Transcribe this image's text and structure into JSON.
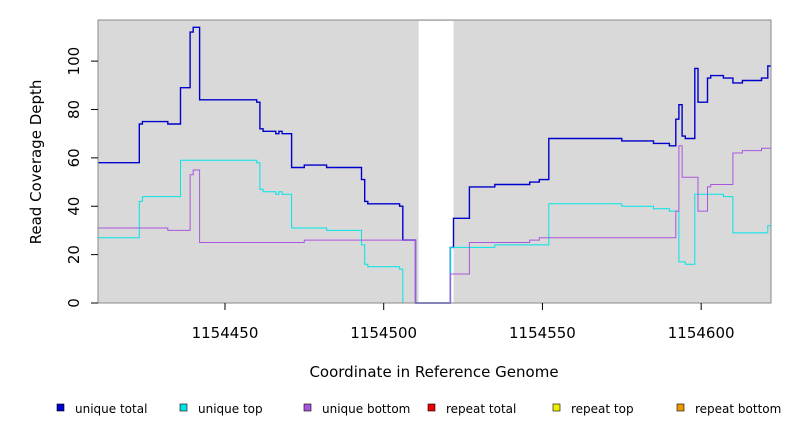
{
  "chart_data": {
    "type": "line",
    "title": "",
    "xlabel": "Coordinate in Reference Genome",
    "ylabel": "Read Coverage Depth",
    "xlim": [
      1154410,
      1154622
    ],
    "ylim": [
      0,
      117
    ],
    "x_ticks": [
      1154450,
      1154500,
      1154550,
      1154600
    ],
    "x_tick_labels": [
      "1154450",
      "1154500",
      "1154550",
      "1154600"
    ],
    "y_ticks": [
      0,
      20,
      40,
      60,
      80,
      100
    ],
    "y_tick_labels": [
      "0",
      "20",
      "40",
      "60",
      "80",
      "100"
    ],
    "grid": false,
    "background": "#d9d9d9",
    "gap": [
      1154511,
      1154522
    ],
    "legend_position": "bottom",
    "series": [
      {
        "name": "unique total",
        "color": "#0000cc",
        "points": [
          [
            1154410,
            58
          ],
          [
            1154423,
            58
          ],
          [
            1154423,
            74
          ],
          [
            1154424,
            74
          ],
          [
            1154424,
            75
          ],
          [
            1154432,
            75
          ],
          [
            1154432,
            74
          ],
          [
            1154436,
            74
          ],
          [
            1154436,
            89
          ],
          [
            1154439,
            89
          ],
          [
            1154439,
            112
          ],
          [
            1154440,
            112
          ],
          [
            1154440,
            114
          ],
          [
            1154442,
            114
          ],
          [
            1154442,
            84
          ],
          [
            1154460,
            84
          ],
          [
            1154460,
            83
          ],
          [
            1154461,
            83
          ],
          [
            1154461,
            72
          ],
          [
            1154462,
            72
          ],
          [
            1154462,
            71
          ],
          [
            1154466,
            71
          ],
          [
            1154466,
            70
          ],
          [
            1154467,
            70
          ],
          [
            1154467,
            71
          ],
          [
            1154468,
            71
          ],
          [
            1154468,
            70
          ],
          [
            1154471,
            70
          ],
          [
            1154471,
            56
          ],
          [
            1154475,
            56
          ],
          [
            1154475,
            57
          ],
          [
            1154482,
            57
          ],
          [
            1154482,
            56
          ],
          [
            1154493,
            56
          ],
          [
            1154493,
            51
          ],
          [
            1154494,
            51
          ],
          [
            1154494,
            42
          ],
          [
            1154495,
            42
          ],
          [
            1154495,
            41
          ],
          [
            1154505,
            41
          ],
          [
            1154505,
            40
          ],
          [
            1154506,
            40
          ],
          [
            1154506,
            26
          ],
          [
            1154510,
            26
          ],
          [
            1154510,
            0
          ],
          [
            1154521,
            0
          ],
          [
            1154521,
            23
          ],
          [
            1154522,
            23
          ],
          [
            1154522,
            35
          ],
          [
            1154527,
            35
          ],
          [
            1154527,
            48
          ],
          [
            1154535,
            48
          ],
          [
            1154535,
            49
          ],
          [
            1154546,
            49
          ],
          [
            1154546,
            50
          ],
          [
            1154549,
            50
          ],
          [
            1154549,
            51
          ],
          [
            1154552,
            51
          ],
          [
            1154552,
            68
          ],
          [
            1154575,
            68
          ],
          [
            1154575,
            67
          ],
          [
            1154585,
            67
          ],
          [
            1154585,
            66
          ],
          [
            1154590,
            66
          ],
          [
            1154590,
            65
          ],
          [
            1154592,
            65
          ],
          [
            1154592,
            76
          ],
          [
            1154593,
            76
          ],
          [
            1154593,
            82
          ],
          [
            1154594,
            82
          ],
          [
            1154594,
            69
          ],
          [
            1154595,
            69
          ],
          [
            1154595,
            68
          ],
          [
            1154598,
            68
          ],
          [
            1154598,
            97
          ],
          [
            1154599,
            97
          ],
          [
            1154599,
            83
          ],
          [
            1154602,
            83
          ],
          [
            1154602,
            93
          ],
          [
            1154603,
            93
          ],
          [
            1154603,
            94
          ],
          [
            1154607,
            94
          ],
          [
            1154607,
            93
          ],
          [
            1154610,
            93
          ],
          [
            1154610,
            91
          ],
          [
            1154613,
            91
          ],
          [
            1154613,
            92
          ],
          [
            1154619,
            92
          ],
          [
            1154619,
            93
          ],
          [
            1154621,
            93
          ],
          [
            1154621,
            98
          ],
          [
            1154622,
            98
          ]
        ]
      },
      {
        "name": "unique top",
        "color": "#00e5e5",
        "points": [
          [
            1154410,
            27
          ],
          [
            1154423,
            27
          ],
          [
            1154423,
            42
          ],
          [
            1154424,
            42
          ],
          [
            1154424,
            44
          ],
          [
            1154436,
            44
          ],
          [
            1154436,
            59
          ],
          [
            1154460,
            59
          ],
          [
            1154460,
            58
          ],
          [
            1154461,
            58
          ],
          [
            1154461,
            47
          ],
          [
            1154462,
            47
          ],
          [
            1154462,
            46
          ],
          [
            1154466,
            46
          ],
          [
            1154466,
            45
          ],
          [
            1154467,
            45
          ],
          [
            1154467,
            46
          ],
          [
            1154468,
            46
          ],
          [
            1154468,
            45
          ],
          [
            1154471,
            45
          ],
          [
            1154471,
            31
          ],
          [
            1154482,
            31
          ],
          [
            1154482,
            30
          ],
          [
            1154493,
            30
          ],
          [
            1154493,
            24
          ],
          [
            1154494,
            24
          ],
          [
            1154494,
            16
          ],
          [
            1154495,
            16
          ],
          [
            1154495,
            15
          ],
          [
            1154505,
            15
          ],
          [
            1154505,
            14
          ],
          [
            1154506,
            14
          ],
          [
            1154506,
            0
          ],
          [
            1154521,
            0
          ],
          [
            1154521,
            23
          ],
          [
            1154535,
            23
          ],
          [
            1154535,
            24
          ],
          [
            1154546,
            24
          ],
          [
            1154546,
            24
          ],
          [
            1154552,
            24
          ],
          [
            1154552,
            41
          ],
          [
            1154575,
            41
          ],
          [
            1154575,
            40
          ],
          [
            1154585,
            40
          ],
          [
            1154585,
            39
          ],
          [
            1154590,
            39
          ],
          [
            1154590,
            38
          ],
          [
            1154592,
            38
          ],
          [
            1154592,
            38
          ],
          [
            1154593,
            38
          ],
          [
            1154593,
            17
          ],
          [
            1154595,
            17
          ],
          [
            1154595,
            16
          ],
          [
            1154598,
            16
          ],
          [
            1154598,
            45
          ],
          [
            1154607,
            45
          ],
          [
            1154607,
            44
          ],
          [
            1154610,
            44
          ],
          [
            1154610,
            29
          ],
          [
            1154621,
            29
          ],
          [
            1154621,
            32
          ],
          [
            1154622,
            32
          ]
        ]
      },
      {
        "name": "unique bottom",
        "color": "#aa55dd",
        "points": [
          [
            1154410,
            31
          ],
          [
            1154432,
            31
          ],
          [
            1154432,
            30
          ],
          [
            1154439,
            30
          ],
          [
            1154439,
            53
          ],
          [
            1154440,
            53
          ],
          [
            1154440,
            55
          ],
          [
            1154442,
            55
          ],
          [
            1154442,
            25
          ],
          [
            1154475,
            25
          ],
          [
            1154475,
            26
          ],
          [
            1154506,
            26
          ],
          [
            1154506,
            26
          ],
          [
            1154510,
            26
          ],
          [
            1154510,
            0
          ],
          [
            1154521,
            0
          ],
          [
            1154521,
            12
          ],
          [
            1154527,
            12
          ],
          [
            1154527,
            25
          ],
          [
            1154546,
            25
          ],
          [
            1154546,
            26
          ],
          [
            1154549,
            26
          ],
          [
            1154549,
            27
          ],
          [
            1154592,
            27
          ],
          [
            1154592,
            38
          ],
          [
            1154593,
            38
          ],
          [
            1154593,
            65
          ],
          [
            1154594,
            65
          ],
          [
            1154594,
            52
          ],
          [
            1154599,
            52
          ],
          [
            1154599,
            38
          ],
          [
            1154602,
            38
          ],
          [
            1154602,
            48
          ],
          [
            1154603,
            48
          ],
          [
            1154603,
            49
          ],
          [
            1154610,
            49
          ],
          [
            1154610,
            62
          ],
          [
            1154613,
            62
          ],
          [
            1154613,
            63
          ],
          [
            1154619,
            63
          ],
          [
            1154619,
            64
          ],
          [
            1154622,
            64
          ]
        ]
      },
      {
        "name": "repeat total",
        "color": "#ee0000",
        "points": [
          [
            1154410,
            0
          ],
          [
            1154622,
            0
          ]
        ]
      },
      {
        "name": "repeat top",
        "color": "#eeee00",
        "points": [
          [
            1154410,
            0
          ],
          [
            1154622,
            0
          ]
        ]
      },
      {
        "name": "repeat bottom",
        "color": "#ee9900",
        "points": [
          [
            1154410,
            0
          ],
          [
            1154622,
            0
          ]
        ]
      }
    ]
  }
}
